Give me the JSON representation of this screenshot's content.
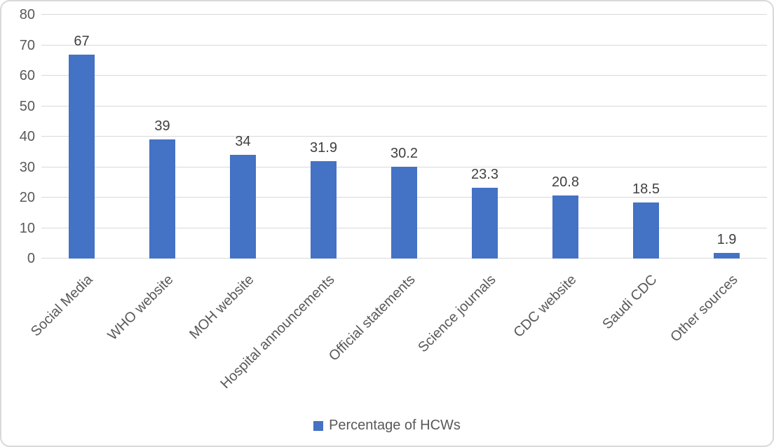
{
  "chart_data": {
    "type": "bar",
    "title": "",
    "categories": [
      "Social Media",
      "WHO website",
      "MOH website",
      "Hospital announcements",
      "Official statements",
      "Science journals",
      "CDC website",
      "Saudi CDC",
      "Other sources"
    ],
    "values": [
      67,
      39,
      34,
      31.9,
      30.2,
      23.3,
      20.8,
      18.5,
      1.9
    ],
    "value_labels": [
      "67",
      "39",
      "34",
      "31.9",
      "30.2",
      "23.3",
      "20.8",
      "18.5",
      "1.9"
    ],
    "series_name": "Percentage of HCWs",
    "xlabel": "",
    "ylabel": "",
    "ylim": [
      0,
      80
    ],
    "yticks": [
      0,
      10,
      20,
      30,
      40,
      50,
      60,
      70,
      80
    ],
    "grid": true,
    "legend_position": "bottom",
    "colors": {
      "bar": "#4472C4",
      "gridline": "#d9d9d9",
      "axis_text": "#595959",
      "value_label_text": "#404040",
      "border": "#d9d9d9",
      "background": "#ffffff"
    }
  },
  "legend": {
    "items": [
      {
        "label": "Percentage of HCWs",
        "color": "#4472C4"
      }
    ]
  }
}
